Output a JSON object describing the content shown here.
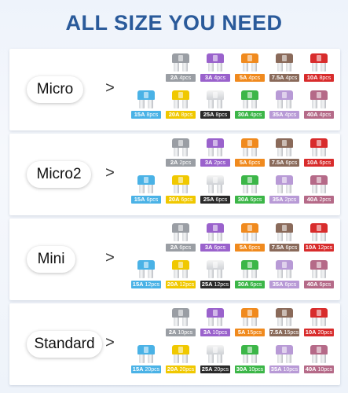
{
  "title": "ALL SIZE YOU NEED",
  "arrow_glyph": ">",
  "colors": {
    "title": "#2a5a9a",
    "2A": "#9a9ea4",
    "3A": "#9a62cc",
    "5A": "#f08a1e",
    "7.5A": "#8a6a5a",
    "10A": "#d82c2c",
    "15A": "#4ab2e6",
    "20A": "#f0c800",
    "25A": "#2a2a2a",
    "30A": "#3cb648",
    "35A": "#b89ad6",
    "40A": "#b56a88"
  },
  "sections": [
    {
      "label": "Micro",
      "rows": [
        [
          {
            "amp": "2A",
            "count": "4pcs"
          },
          {
            "amp": "3A",
            "count": "4pcs"
          },
          {
            "amp": "5A",
            "count": "4pcs"
          },
          {
            "amp": "7.5A",
            "count": "4pcs"
          },
          {
            "amp": "10A",
            "count": "8pcs"
          }
        ],
        [
          {
            "amp": "15A",
            "count": "8pcs"
          },
          {
            "amp": "20A",
            "count": "8pcs"
          },
          {
            "amp": "25A",
            "count": "8pcs"
          },
          {
            "amp": "30A",
            "count": "4pcs"
          },
          {
            "amp": "35A",
            "count": "4pcs"
          },
          {
            "amp": "40A",
            "count": "4pcs"
          }
        ]
      ]
    },
    {
      "label": "Micro2",
      "rows": [
        [
          {
            "amp": "2A",
            "count": "2pcs"
          },
          {
            "amp": "3A",
            "count": "2pcs"
          },
          {
            "amp": "5A",
            "count": "6pcs"
          },
          {
            "amp": "7.5A",
            "count": "6pcs"
          },
          {
            "amp": "10A",
            "count": "6pcs"
          }
        ],
        [
          {
            "amp": "15A",
            "count": "6pcs"
          },
          {
            "amp": "20A",
            "count": "6pcs"
          },
          {
            "amp": "25A",
            "count": "6pcs"
          },
          {
            "amp": "30A",
            "count": "6pcs"
          },
          {
            "amp": "35A",
            "count": "2pcs"
          },
          {
            "amp": "40A",
            "count": "2pcs"
          }
        ]
      ]
    },
    {
      "label": "Mini",
      "rows": [
        [
          {
            "amp": "2A",
            "count": "6pcs"
          },
          {
            "amp": "3A",
            "count": "6pcs"
          },
          {
            "amp": "5A",
            "count": "6pcs"
          },
          {
            "amp": "7.5A",
            "count": "6pcs"
          },
          {
            "amp": "10A",
            "count": "12pcs"
          }
        ],
        [
          {
            "amp": "15A",
            "count": "12pcs"
          },
          {
            "amp": "20A",
            "count": "12pcs"
          },
          {
            "amp": "25A",
            "count": "12pcs"
          },
          {
            "amp": "30A",
            "count": "6pcs"
          },
          {
            "amp": "35A",
            "count": "6pcs"
          },
          {
            "amp": "40A",
            "count": "6pcs"
          }
        ]
      ]
    },
    {
      "label": "Standard",
      "rows": [
        [
          {
            "amp": "2A",
            "count": "10pcs"
          },
          {
            "amp": "3A",
            "count": "10pcs"
          },
          {
            "amp": "5A",
            "count": "15pcs"
          },
          {
            "amp": "7.5A",
            "count": "15pcs"
          },
          {
            "amp": "10A",
            "count": "20pcs"
          }
        ],
        [
          {
            "amp": "15A",
            "count": "20pcs"
          },
          {
            "amp": "20A",
            "count": "20pcs"
          },
          {
            "amp": "25A",
            "count": "20pcs"
          },
          {
            "amp": "30A",
            "count": "10pcs"
          },
          {
            "amp": "35A",
            "count": "10pcs"
          },
          {
            "amp": "40A",
            "count": "10pcs"
          }
        ]
      ]
    }
  ]
}
